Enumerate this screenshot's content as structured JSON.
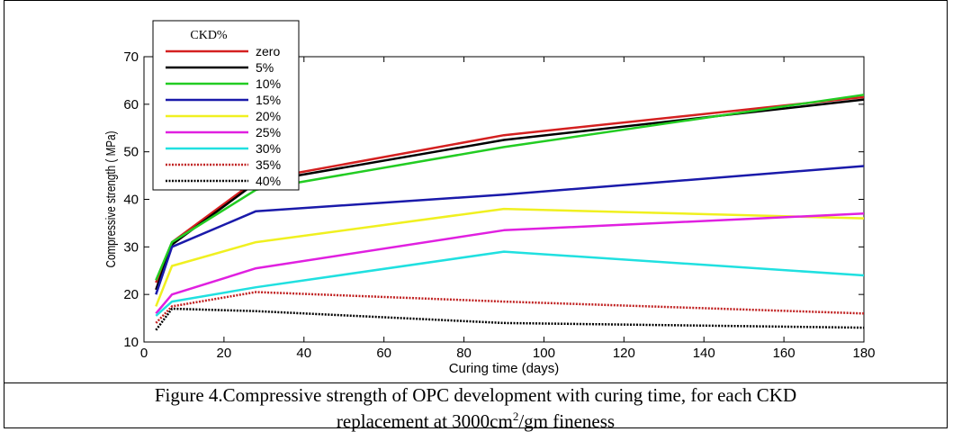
{
  "chart_data": {
    "type": "line",
    "xlabel": "Curing time (days)",
    "ylabel": "Compressive strength ( MPa)",
    "xlim": [
      0,
      180
    ],
    "ylim": [
      10,
      70
    ],
    "xticks": [
      0,
      20,
      40,
      60,
      80,
      100,
      120,
      140,
      160,
      180
    ],
    "yticks": [
      10,
      20,
      30,
      40,
      50,
      60,
      70
    ],
    "x": [
      3,
      7,
      28,
      90,
      180
    ],
    "legend_title": "CKD%",
    "legend_position": "top-left",
    "series": [
      {
        "name": "zero",
        "color": "#d42020",
        "dash": "solid",
        "values": [
          22.5,
          31,
          44,
          53.5,
          61.5
        ]
      },
      {
        "name": "5%",
        "color": "#000000",
        "dash": "solid",
        "values": [
          21,
          30.5,
          43.5,
          52.5,
          61
        ]
      },
      {
        "name": "10%",
        "color": "#22cc22",
        "dash": "solid",
        "values": [
          23,
          31,
          42,
          51,
          62
        ]
      },
      {
        "name": "15%",
        "color": "#1a1aaa",
        "dash": "solid",
        "values": [
          20,
          30,
          37.5,
          41,
          47
        ]
      },
      {
        "name": "20%",
        "color": "#f0f020",
        "dash": "solid",
        "values": [
          17.5,
          26,
          31,
          38,
          36
        ]
      },
      {
        "name": "25%",
        "color": "#e020e0",
        "dash": "solid",
        "values": [
          16,
          20,
          25.5,
          33.5,
          37
        ]
      },
      {
        "name": "30%",
        "color": "#20e0e0",
        "dash": "solid",
        "values": [
          15.5,
          18.5,
          21.5,
          29,
          24
        ]
      },
      {
        "name": "35%",
        "color": "#c02020",
        "dash": "dotted",
        "values": [
          14,
          17.5,
          20.5,
          18.5,
          16
        ]
      },
      {
        "name": "40%",
        "color": "#000000",
        "dash": "dotted",
        "values": [
          12.5,
          17,
          16.5,
          14,
          13
        ]
      }
    ]
  },
  "caption": {
    "line1": "Figure 4.Compressive strength of OPC  development with curing time, for each  CKD",
    "line2_before": "replacement at 3000cm",
    "line2_sup": "2",
    "line2_after": "/gm fineness"
  }
}
